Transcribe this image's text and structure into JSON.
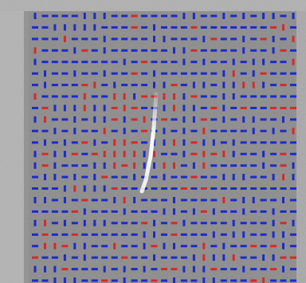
{
  "image": {
    "subject": "grid-of-short-dash-markers-on-textured-gray-background",
    "colors": {
      "background": "#8f8f8f",
      "background_light": "#c4c4c4",
      "frame": "#b8b8b8",
      "marker_blue": "#1c2bc7",
      "marker_red": "#d62a2a",
      "streak": "#f4f4f4"
    },
    "grid": {
      "rows": 24,
      "cols": 27,
      "red_fraction": 0.14,
      "vertical_fraction": 0.34
    }
  }
}
